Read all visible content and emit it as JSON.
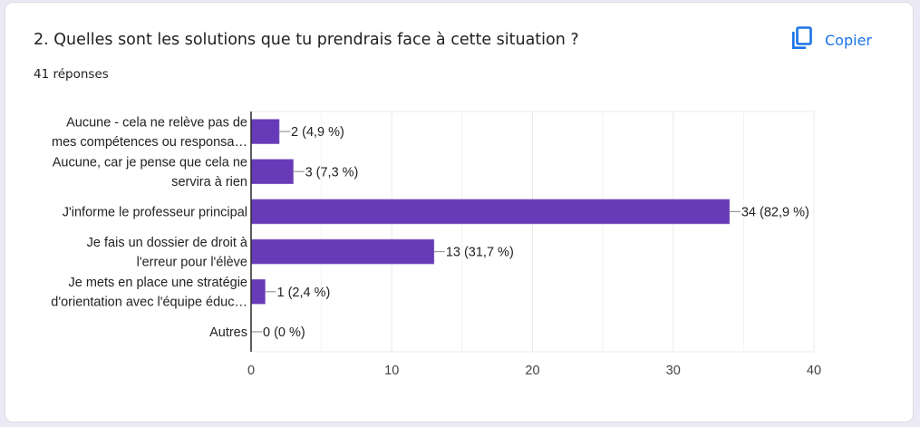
{
  "card": {
    "title": "2. Quelles sont les solutions que tu prendrais face à cette situation ?",
    "response_count": "41 réponses",
    "copy_button": {
      "label": "Copier",
      "icon": "copy-icon"
    }
  },
  "colors": {
    "bar": "#673ab7",
    "accent": "#1a73e8",
    "background": "#ece9f7"
  },
  "chart_data": {
    "type": "bar",
    "orientation": "horizontal",
    "title": "",
    "xlabel": "",
    "ylabel": "",
    "categories": [
      [
        "Aucune - cela ne relève pas de",
        "mes compétences ou responsa…"
      ],
      [
        "Aucune, car je pense que cela ne",
        "servira à rien"
      ],
      [
        "J'informe le professeur principal"
      ],
      [
        "Je fais un dossier de droit à",
        "l'erreur pour l'élève"
      ],
      [
        "Je mets en place une stratégie",
        "d'orientation avec l'équipe éduc…"
      ],
      [
        "Autres"
      ]
    ],
    "values": [
      2,
      3,
      34,
      13,
      1,
      0
    ],
    "data_labels": [
      "2 (4,9 %)",
      "3 (7,3 %)",
      "34 (82,9 %)",
      "13 (31,7 %)",
      "1 (2,4 %)",
      "0 (0 %)"
    ],
    "xlim": [
      0,
      40
    ],
    "x_ticks": [
      0,
      10,
      20,
      30,
      40
    ],
    "x_tick_labels": [
      "0",
      "10",
      "20",
      "30",
      "40"
    ],
    "minor_gridlines": [
      5,
      15,
      25,
      35
    ],
    "grid": true,
    "legend": "none"
  }
}
